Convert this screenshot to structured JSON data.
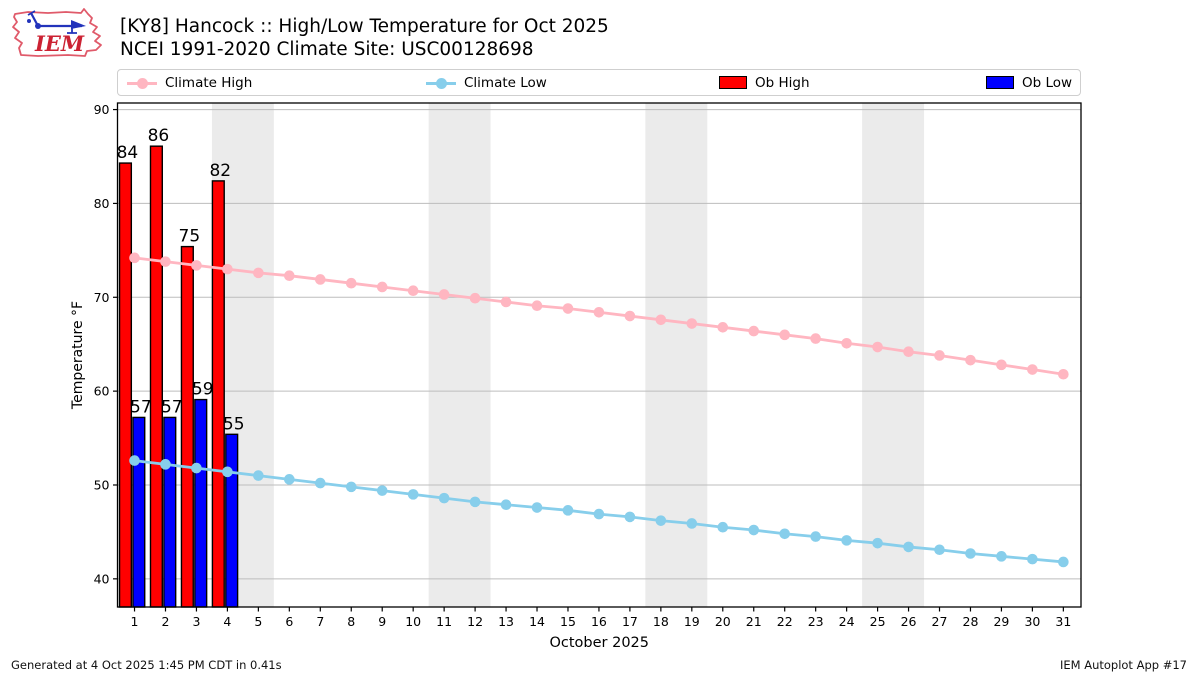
{
  "header": {
    "logo_text": "IEM",
    "title_line1": "[KY8] Hancock :: High/Low Temperature for Oct 2025",
    "title_line2": "NCEI 1991-2020 Climate Site: USC00128698"
  },
  "legend": {
    "items": [
      {
        "label": "Climate High",
        "type": "line",
        "color": "#FFB6C1"
      },
      {
        "label": "Climate Low",
        "type": "line",
        "color": "#87CEEB"
      },
      {
        "label": "Ob High",
        "type": "patch",
        "color": "#FF0000"
      },
      {
        "label": "Ob Low",
        "type": "patch",
        "color": "#0000FF"
      }
    ]
  },
  "footer": {
    "left": "Generated at 4 Oct 2025 1:45 PM CDT in 0.41s",
    "right": "IEM Autoplot App #17"
  },
  "chart_data": {
    "type": "bar+line",
    "xlabel": "October 2025",
    "ylabel": "Temperature °F",
    "x": [
      1,
      2,
      3,
      4,
      5,
      6,
      7,
      8,
      9,
      10,
      11,
      12,
      13,
      14,
      15,
      16,
      17,
      18,
      19,
      20,
      21,
      22,
      23,
      24,
      25,
      26,
      27,
      28,
      29,
      30,
      31
    ],
    "xlim": [
      0.45,
      31.57
    ],
    "ylim": [
      37.0,
      90.7
    ],
    "yticks": [
      40,
      50,
      60,
      70,
      80,
      90
    ],
    "grid": "horizontal",
    "weekend_bands": [
      [
        3.5,
        5.5
      ],
      [
        10.5,
        12.5
      ],
      [
        17.5,
        19.5
      ],
      [
        24.5,
        26.5
      ]
    ],
    "band_color": "#EBEBEB",
    "grid_color": "#BDBDBD",
    "series": [
      {
        "name": "Climate High",
        "type": "line",
        "color": "#FFB6C1",
        "values": [
          74.2,
          73.8,
          73.4,
          73.0,
          72.6,
          72.3,
          71.9,
          71.5,
          71.1,
          70.7,
          70.3,
          69.9,
          69.5,
          69.1,
          68.8,
          68.4,
          68.0,
          67.6,
          67.2,
          66.8,
          66.4,
          66.0,
          65.6,
          65.1,
          64.7,
          64.2,
          63.8,
          63.3,
          62.8,
          62.3,
          61.8
        ]
      },
      {
        "name": "Climate Low",
        "type": "line",
        "color": "#87CEEB",
        "values": [
          52.6,
          52.2,
          51.8,
          51.4,
          51.0,
          50.6,
          50.2,
          49.8,
          49.4,
          49.0,
          48.6,
          48.2,
          47.9,
          47.6,
          47.3,
          46.9,
          46.6,
          46.2,
          45.9,
          45.5,
          45.2,
          44.8,
          44.5,
          44.1,
          43.8,
          43.4,
          43.1,
          42.7,
          42.4,
          42.1,
          41.8
        ]
      },
      {
        "name": "Ob High",
        "type": "bar",
        "color": "#FF0000",
        "side": "left",
        "days": [
          1,
          2,
          3,
          4
        ],
        "values": [
          84.3,
          86.1,
          75.4,
          82.4
        ],
        "labels": [
          "84",
          "86",
          "75",
          "82"
        ]
      },
      {
        "name": "Ob Low",
        "type": "bar",
        "color": "#0000FF",
        "side": "right",
        "days": [
          1,
          2,
          3,
          4
        ],
        "values": [
          57.2,
          57.2,
          59.1,
          55.4
        ],
        "labels": [
          "57",
          "57",
          "59",
          "55"
        ]
      }
    ]
  }
}
